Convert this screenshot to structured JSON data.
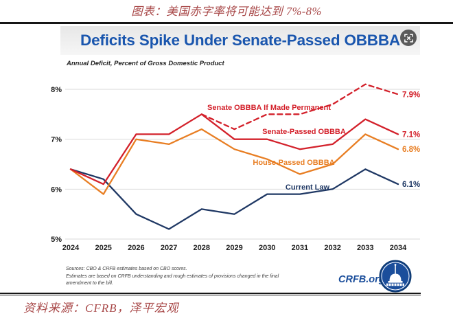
{
  "page": {
    "top_caption": "图表：美国赤字率将可能达到 7%-8%",
    "bottom_caption": "资料来源：CFRB，泽平宏观"
  },
  "card": {
    "title": "Deficits Spike Under Senate-Passed OBBBA",
    "subtitle": "Annual Deficit, Percent of Gross Domestic Product",
    "sources_line1": "Sources: CBO & CRFB estimates based on CBO scores.",
    "sources_line2": "Estimates are based on CRFB understanding and rough estimates of provisions changed in the final",
    "sources_line3": "amendment to the bill.",
    "logo_text": "CRFB.org"
  },
  "colors": {
    "title_blue": "#1a56ae",
    "caption_red": "#a84848",
    "navy": "#1f3864",
    "red": "#d3202a",
    "orange": "#e87e23",
    "grid": "#d9d9d9",
    "crfb_blue": "#1b4e9b"
  },
  "chart_data": {
    "type": "line",
    "title": "Deficits Spike Under Senate-Passed OBBBA",
    "subtitle": "Annual Deficit, Percent of Gross Domestic Product",
    "xlabel": "",
    "ylabel": "Percent of GDP",
    "x": [
      "2024",
      "2025",
      "2026",
      "2027",
      "2028",
      "2029",
      "2030",
      "2031",
      "2032",
      "2033",
      "2034"
    ],
    "ylim": [
      5,
      8
    ],
    "yticks": [
      "8%",
      "7%",
      "6%",
      "5%"
    ],
    "ytick_values": [
      8,
      7,
      6,
      5
    ],
    "grid": "horizontal",
    "legend_position": "inline-labels",
    "series": [
      {
        "name": "Current Law",
        "color": "navy",
        "style": "solid",
        "end_label": "6.1%",
        "values": [
          6.4,
          6.2,
          5.5,
          5.2,
          5.6,
          5.5,
          5.9,
          5.9,
          6.0,
          6.4,
          6.1
        ]
      },
      {
        "name": "House-Passed OBBBA",
        "color": "orange",
        "style": "solid",
        "end_label": "6.8%",
        "values": [
          6.4,
          5.9,
          7.0,
          6.9,
          7.2,
          6.8,
          6.6,
          6.3,
          6.5,
          7.1,
          6.8
        ]
      },
      {
        "name": "Senate-Passed OBBBA",
        "color": "red",
        "style": "solid",
        "end_label": "7.1%",
        "values": [
          6.4,
          6.1,
          7.1,
          7.1,
          7.5,
          7.0,
          7.0,
          6.8,
          6.9,
          7.4,
          7.1
        ]
      },
      {
        "name": "Senate OBBBA If Made Permanent",
        "color": "red",
        "style": "dashed",
        "end_label": "7.9%",
        "values": [
          null,
          null,
          null,
          null,
          7.5,
          7.2,
          7.5,
          7.5,
          7.7,
          8.1,
          7.9
        ]
      }
    ]
  }
}
